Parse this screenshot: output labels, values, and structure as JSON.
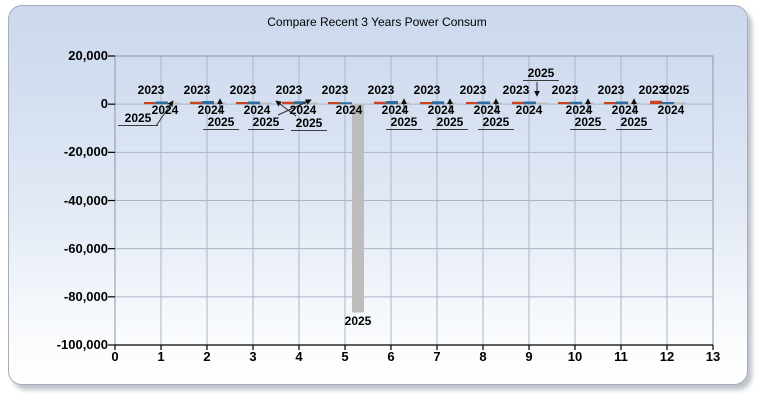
{
  "window": {
    "background_color": "#ffffff",
    "panel_top_color": "#cbd8ec",
    "panel_bottom_color": "#ffffff",
    "panel_border_color": "#a3adbe"
  },
  "chart_data": {
    "type": "bar",
    "title": "Compare Recent 3 Years Power Consum",
    "xlabel": "",
    "ylabel": "",
    "grid": true,
    "legend_position": "none",
    "values_approximate": true,
    "categories": [
      1,
      2,
      3,
      4,
      5,
      6,
      7,
      8,
      9,
      10,
      11,
      12
    ],
    "series": [
      {
        "name": "2023",
        "color": "#c7441f",
        "values": [
          900,
          1000,
          900,
          1000,
          900,
          1000,
          900,
          900,
          1000,
          900,
          900,
          1400
        ]
      },
      {
        "name": "2024",
        "color": "#2f6b9d",
        "values": [
          1100,
          1300,
          1100,
          1200,
          800,
          1300,
          1200,
          1100,
          1100,
          1000,
          1100,
          900
        ]
      },
      {
        "name": "2025",
        "color": "#bdbdbd",
        "values": [
          600,
          700,
          600,
          600,
          -86500,
          700,
          600,
          600,
          500,
          600,
          600,
          800
        ]
      }
    ],
    "x_axis": {
      "min": 0,
      "max": 13,
      "tick_step": 1,
      "tick_labels": [
        "0",
        "1",
        "2",
        "3",
        "4",
        "5",
        "6",
        "7",
        "8",
        "9",
        "10",
        "11",
        "12",
        "13"
      ]
    },
    "y_axis": {
      "min": -100000,
      "max": 20000,
      "tick_step": 20000,
      "tick_labels": [
        "20,000",
        "0",
        "-20,000",
        "-40,000",
        "-60,000",
        "-80,000",
        "-100,000"
      ]
    },
    "gridline_color": "#a9b5c9",
    "plot_border_color": "#8e96a2",
    "axis_color": "#000000",
    "leader_line_color": "#2a2a2a"
  }
}
